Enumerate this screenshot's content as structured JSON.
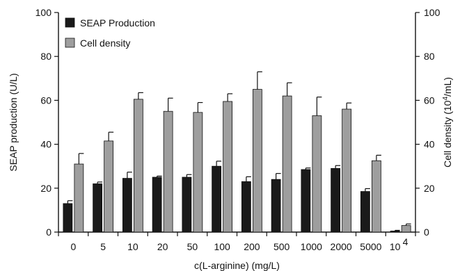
{
  "chart_data": {
    "type": "bar",
    "categories": [
      "0",
      "5",
      "10",
      "20",
      "50",
      "100",
      "200",
      "500",
      "1000",
      "2000",
      "5000",
      "10^4"
    ],
    "xlabel": "c(L-arginine) (mg/L)",
    "ylabel_left": "SEAP production (U/L)",
    "ylabel_right": "Cell density (10^4/mL)",
    "ylim": [
      0,
      100
    ],
    "yticks": [
      "0",
      "20",
      "40",
      "60",
      "80",
      "100"
    ],
    "legend_position": "top-left",
    "series": [
      {
        "name": "SEAP Production",
        "color": "#1a1a1a",
        "values": [
          13,
          22,
          24.5,
          25,
          25,
          30,
          23,
          24,
          28.5,
          29,
          18.5,
          0.5
        ],
        "errors": [
          1.3,
          0.8,
          2.8,
          0.5,
          1.2,
          2.3,
          2.2,
          2.7,
          0.7,
          1.3,
          1.3,
          0.3
        ]
      },
      {
        "name": "Cell density",
        "color": "#9e9e9e",
        "values": [
          31,
          41.5,
          60.5,
          55,
          54.5,
          59.5,
          65,
          62,
          53,
          56,
          32.5,
          3
        ],
        "errors": [
          4.8,
          4,
          3,
          6,
          4.5,
          3.5,
          8,
          6,
          8.5,
          2.8,
          2.5,
          0.7
        ]
      }
    ]
  }
}
